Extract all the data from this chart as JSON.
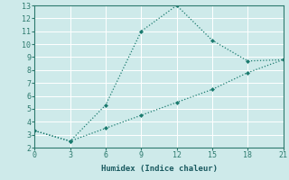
{
  "line1_x": [
    0,
    3,
    6,
    9,
    12,
    15,
    18,
    21
  ],
  "line1_y": [
    3.3,
    2.5,
    5.3,
    11.0,
    13.0,
    10.3,
    8.7,
    8.8
  ],
  "line2_x": [
    0,
    3,
    6,
    9,
    12,
    15,
    18,
    21
  ],
  "line2_y": [
    3.3,
    2.5,
    3.5,
    4.5,
    5.5,
    6.5,
    7.8,
    8.8
  ],
  "line_color": "#1a7a6e",
  "xlabel": "Humidex (Indice chaleur)",
  "ylim": [
    2,
    13
  ],
  "xlim": [
    0,
    21
  ],
  "yticks": [
    2,
    3,
    4,
    5,
    6,
    7,
    8,
    9,
    10,
    11,
    12,
    13
  ],
  "xticks": [
    0,
    3,
    6,
    9,
    12,
    15,
    18,
    21
  ],
  "background_color": "#ceeaea",
  "grid_color": "#ffffff",
  "spine_color": "#2d7a6e",
  "tick_color": "#2d7a6e",
  "label_color": "#1a5a60"
}
